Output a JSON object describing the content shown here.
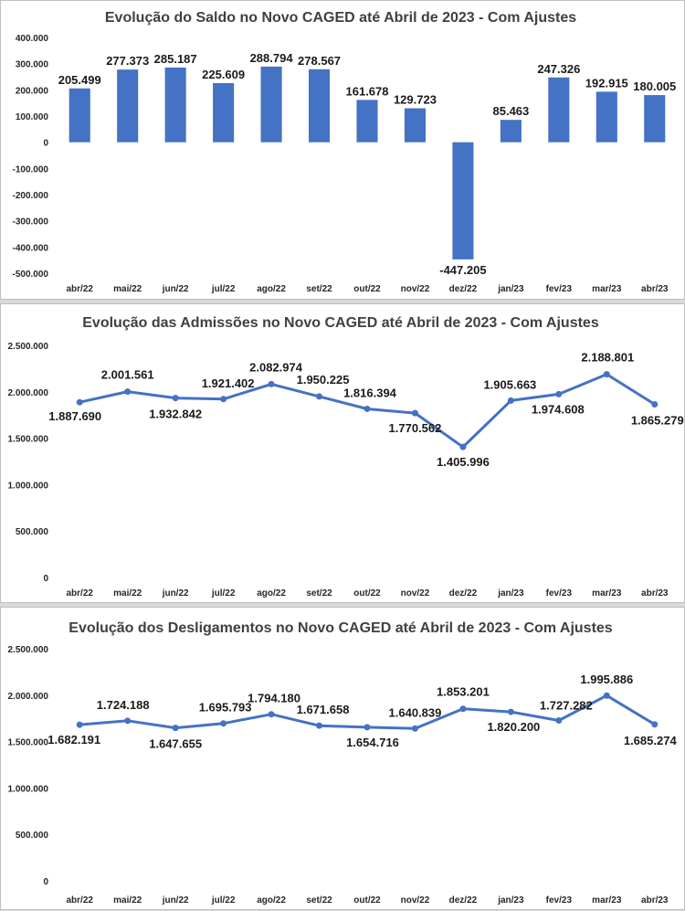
{
  "charts": [
    {
      "type": "bar",
      "title": "Evolução do Saldo no Novo CAGED até Abril de 2023 - Com Ajustes",
      "categories": [
        "abr/22",
        "mai/22",
        "jun/22",
        "jul/22",
        "ago/22",
        "set/22",
        "out/22",
        "nov/22",
        "dez/22",
        "jan/23",
        "fev/23",
        "mar/23",
        "abr/23"
      ],
      "values": [
        205499,
        277373,
        285187,
        225609,
        288794,
        278567,
        161678,
        129723,
        -447205,
        85463,
        247326,
        192915,
        180005
      ],
      "value_labels": [
        "205.499",
        "277.373",
        "285.187",
        "225.609",
        "288.794",
        "278.567",
        "161.678",
        "129.723",
        "-447.205",
        "85.463",
        "247.326",
        "192.915",
        "180.005"
      ],
      "yticks": [
        400000,
        300000,
        200000,
        100000,
        0,
        -100000,
        -200000,
        -300000,
        -400000,
        -500000
      ],
      "ytick_labels": [
        "400.000",
        "300.000",
        "200.000",
        "100.000",
        "0",
        "-100.000",
        "-200.000",
        "-300.000",
        "-400.000",
        "-500.000"
      ],
      "ylim": [
        -500000,
        400000
      ],
      "color": "#4472c4",
      "grid": false,
      "legend": "none"
    },
    {
      "type": "line",
      "title": "Evolução das Admissões no Novo CAGED até Abril de 2023 - Com Ajustes",
      "categories": [
        "abr/22",
        "mai/22",
        "jun/22",
        "jul/22",
        "ago/22",
        "set/22",
        "out/22",
        "nov/22",
        "dez/22",
        "jan/23",
        "fev/23",
        "mar/23",
        "abr/23"
      ],
      "values": [
        1887690,
        2001561,
        1932842,
        1921402,
        2082974,
        1950225,
        1816394,
        1770562,
        1405996,
        1905663,
        1974608,
        2188801,
        1865279
      ],
      "value_labels": [
        "1.887.690",
        "2.001.561",
        "1.932.842",
        "1.921.402",
        "2.082.974",
        "1.950.225",
        "1.816.394",
        "1.770.562",
        "1.405.996",
        "1.905.663",
        "1.974.608",
        "2.188.801",
        "1.865.279"
      ],
      "yticks": [
        2500000,
        2000000,
        1500000,
        1000000,
        500000,
        0
      ],
      "ytick_labels": [
        "2.500.000",
        "2.000.000",
        "1.500.000",
        "1.000.000",
        "500.000",
        "0"
      ],
      "ylim": [
        0,
        2500000
      ],
      "color": "#4472c4",
      "grid": false,
      "legend": "none"
    },
    {
      "type": "line",
      "title": "Evolução dos Desligamentos no Novo CAGED até Abril de 2023 - Com Ajustes",
      "categories": [
        "abr/22",
        "mai/22",
        "jun/22",
        "jul/22",
        "ago/22",
        "set/22",
        "out/22",
        "nov/22",
        "dez/22",
        "jan/23",
        "fev/23",
        "mar/23",
        "abr/23"
      ],
      "values": [
        1682191,
        1724188,
        1647655,
        1695793,
        1794180,
        1671658,
        1654716,
        1640839,
        1853201,
        1820200,
        1727282,
        1995886,
        1685274
      ],
      "value_labels": [
        "1.682.191",
        "1.724.188",
        "1.647.655",
        "1.695.793",
        "1.794.180",
        "1.671.658",
        "1.654.716",
        "1.640.839",
        "1.853.201",
        "1.820.200",
        "1.727.282",
        "1.995.886",
        "1.685.274"
      ],
      "yticks": [
        2500000,
        2000000,
        1500000,
        1000000,
        500000,
        0
      ],
      "ytick_labels": [
        "2.500.000",
        "2.000.000",
        "1.500.000",
        "1.000.000",
        "500.000",
        "0"
      ],
      "ylim": [
        0,
        2500000
      ],
      "color": "#4472c4",
      "grid": false,
      "legend": "none"
    }
  ]
}
